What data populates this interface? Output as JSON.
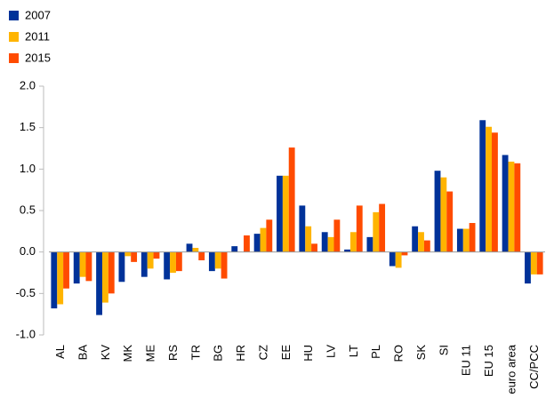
{
  "chart_data": {
    "type": "bar",
    "categories": [
      "AL",
      "BA",
      "KV",
      "MK",
      "ME",
      "RS",
      "TR",
      "BG",
      "HR",
      "CZ",
      "EE",
      "HU",
      "LV",
      "LT",
      "PL",
      "RO",
      "SK",
      "SI",
      "EU 11",
      "EU 15",
      "euro area",
      "CC/PCC"
    ],
    "series": [
      {
        "name": "2007",
        "color": "#003299",
        "values": [
          -0.68,
          -0.38,
          -0.76,
          -0.36,
          -0.3,
          -0.33,
          0.1,
          -0.23,
          0.07,
          0.22,
          0.92,
          0.56,
          0.24,
          0.03,
          0.18,
          -0.17,
          0.31,
          0.98,
          0.28,
          1.59,
          1.17,
          -0.38
        ]
      },
      {
        "name": "2011",
        "color": "#FFB400",
        "values": [
          -0.63,
          -0.3,
          -0.61,
          -0.05,
          -0.2,
          -0.25,
          0.05,
          -0.2,
          0.0,
          0.29,
          0.92,
          0.31,
          0.18,
          0.24,
          0.48,
          -0.19,
          0.24,
          0.9,
          0.28,
          1.51,
          1.09,
          -0.27
        ]
      },
      {
        "name": "2015",
        "color": "#FF4B00",
        "values": [
          -0.44,
          -0.35,
          -0.5,
          -0.12,
          -0.08,
          -0.23,
          -0.1,
          -0.32,
          0.2,
          0.39,
          1.26,
          0.1,
          0.39,
          0.56,
          0.58,
          -0.04,
          0.14,
          0.73,
          0.35,
          1.44,
          1.07,
          -0.27
        ]
      }
    ],
    "ylim": [
      -1.0,
      2.0
    ],
    "yticks": [
      {
        "value": -1.0,
        "label": "-1.0"
      },
      {
        "value": -0.5,
        "label": "-0.5"
      },
      {
        "value": 0,
        "label": "0.0"
      },
      {
        "value": 0.5,
        "label": "0.5"
      },
      {
        "value": 1.0,
        "label": "1.0"
      },
      {
        "value": 1.5,
        "label": "1.5"
      },
      {
        "value": 2.0,
        "label": "2.0"
      }
    ],
    "grid": false,
    "legend": "top-left"
  }
}
